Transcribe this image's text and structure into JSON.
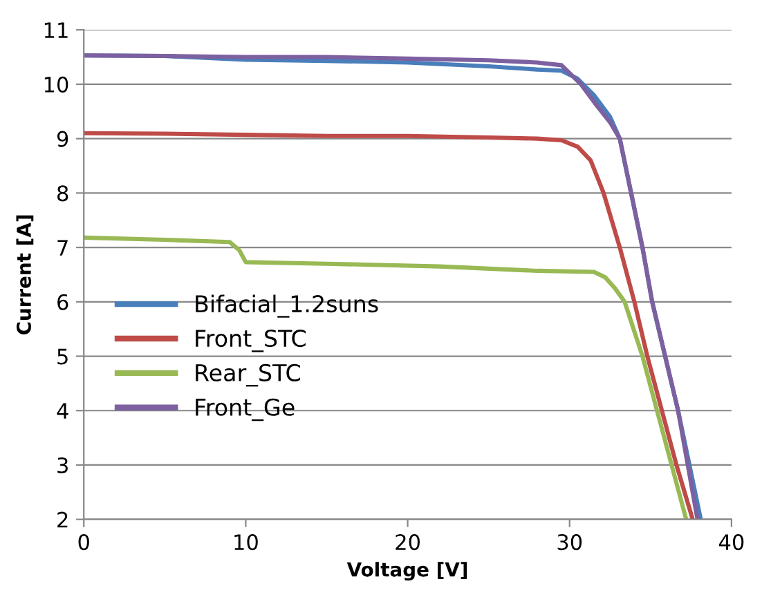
{
  "chart_data": {
    "type": "line",
    "xlabel": "Voltage [V]",
    "ylabel": "Current [A]",
    "xlim": [
      0,
      40
    ],
    "xticks": [
      0,
      10,
      20,
      30,
      40
    ],
    "ylim": [
      2,
      11
    ],
    "yticks": [
      2,
      3,
      4,
      5,
      6,
      7,
      8,
      9,
      10,
      11
    ],
    "grid": "y",
    "legend": "left",
    "marker": "none",
    "line_style": "solid",
    "series": [
      {
        "name": "Bifacial_1.2suns",
        "color": "#4a7ebb",
        "x": [
          0,
          5,
          10,
          15,
          20,
          25,
          28,
          29.5,
          30.5,
          31.5,
          32.5,
          33.1,
          33.8,
          34.5,
          35.1,
          35.9,
          36.7,
          37.4,
          38.1
        ],
        "values": [
          10.53,
          10.52,
          10.45,
          10.43,
          10.4,
          10.33,
          10.27,
          10.25,
          10.1,
          9.8,
          9.4,
          9,
          8,
          7,
          6,
          5,
          4,
          3,
          2
        ]
      },
      {
        "name": "Front_STC",
        "color": "#be4b48",
        "x": [
          0,
          5,
          10,
          15,
          20,
          25,
          28,
          29.5,
          30.5,
          31.3,
          32.1,
          33.1,
          34.0,
          34.8,
          35.7,
          36.6,
          37.6
        ],
        "values": [
          9.1,
          9.09,
          9.07,
          9.05,
          9.05,
          9.02,
          9.0,
          8.97,
          8.85,
          8.6,
          8,
          7,
          6,
          5,
          4,
          3,
          2
        ]
      },
      {
        "name": "Rear_STC",
        "color": "#98b954",
        "x": [
          0,
          5,
          9,
          9.6,
          10,
          15,
          22,
          28,
          31.5,
          32.2,
          32.8,
          33.4,
          34.5,
          35.4,
          36.3,
          37.2
        ],
        "values": [
          7.18,
          7.14,
          7.1,
          6.95,
          6.73,
          6.7,
          6.65,
          6.57,
          6.55,
          6.45,
          6.25,
          6,
          5,
          4,
          3,
          2
        ]
      },
      {
        "name": "Front_Ge",
        "color": "#7d60a0",
        "x": [
          0,
          5,
          10,
          15,
          20,
          25,
          28,
          29.5,
          30.7,
          31.7,
          32.5,
          33.1,
          33.8,
          34.5,
          35.1,
          35.9,
          36.7,
          37.3,
          37.9
        ],
        "values": [
          10.53,
          10.52,
          10.5,
          10.5,
          10.47,
          10.44,
          10.4,
          10.35,
          10,
          9.6,
          9.3,
          9,
          8,
          7,
          6,
          5,
          4,
          3,
          2
        ]
      }
    ]
  }
}
